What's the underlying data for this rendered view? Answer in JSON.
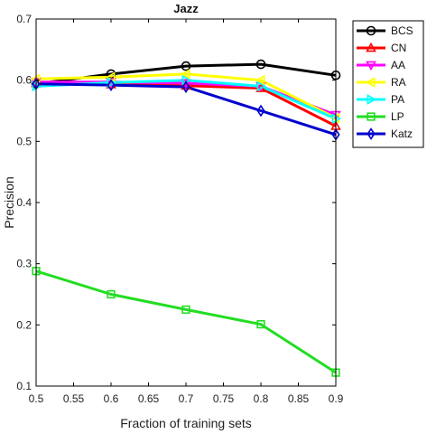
{
  "chart_data": {
    "type": "line",
    "title": "Jazz",
    "xlabel": "Fraction of training sets",
    "ylabel": "Precision",
    "xlim": [
      0.5,
      0.9
    ],
    "ylim": [
      0.1,
      0.7
    ],
    "grid": false,
    "legend_position": "top-right",
    "x_ticks": [
      "0.5",
      "0.55",
      "0.6",
      "0.65",
      "0.7",
      "0.75",
      "0.8",
      "0.85",
      "0.9"
    ],
    "y_ticks": [
      "0.1",
      "0.2",
      "0.3",
      "0.4",
      "0.5",
      "0.6",
      "0.7"
    ],
    "x": [
      0.5,
      0.6,
      0.7,
      0.8,
      0.9
    ],
    "series": [
      {
        "name": "BCS",
        "color": "#000000",
        "marker": "circle",
        "values": [
          0.594,
          0.61,
          0.623,
          0.626,
          0.608
        ]
      },
      {
        "name": "CN",
        "color": "#ff0000",
        "marker": "triangle-up",
        "values": [
          0.595,
          0.593,
          0.591,
          0.587,
          0.525
        ]
      },
      {
        "name": "AA",
        "color": "#ff00ff",
        "marker": "triangle-down",
        "values": [
          0.597,
          0.597,
          0.595,
          0.59,
          0.543
        ]
      },
      {
        "name": "RA",
        "color": "#ffff00",
        "marker": "triangle-left",
        "values": [
          0.602,
          0.605,
          0.61,
          0.6,
          0.538
        ]
      },
      {
        "name": "PA",
        "color": "#00ffff",
        "marker": "triangle-right",
        "values": [
          0.59,
          0.596,
          0.6,
          0.59,
          0.537
        ]
      },
      {
        "name": "LP",
        "color": "#22dd22",
        "marker": "square",
        "values": [
          0.288,
          0.25,
          0.225,
          0.201,
          0.122
        ]
      },
      {
        "name": "Katz",
        "color": "#0000cc",
        "marker": "diamond",
        "values": [
          0.594,
          0.592,
          0.589,
          0.55,
          0.511
        ]
      }
    ]
  }
}
